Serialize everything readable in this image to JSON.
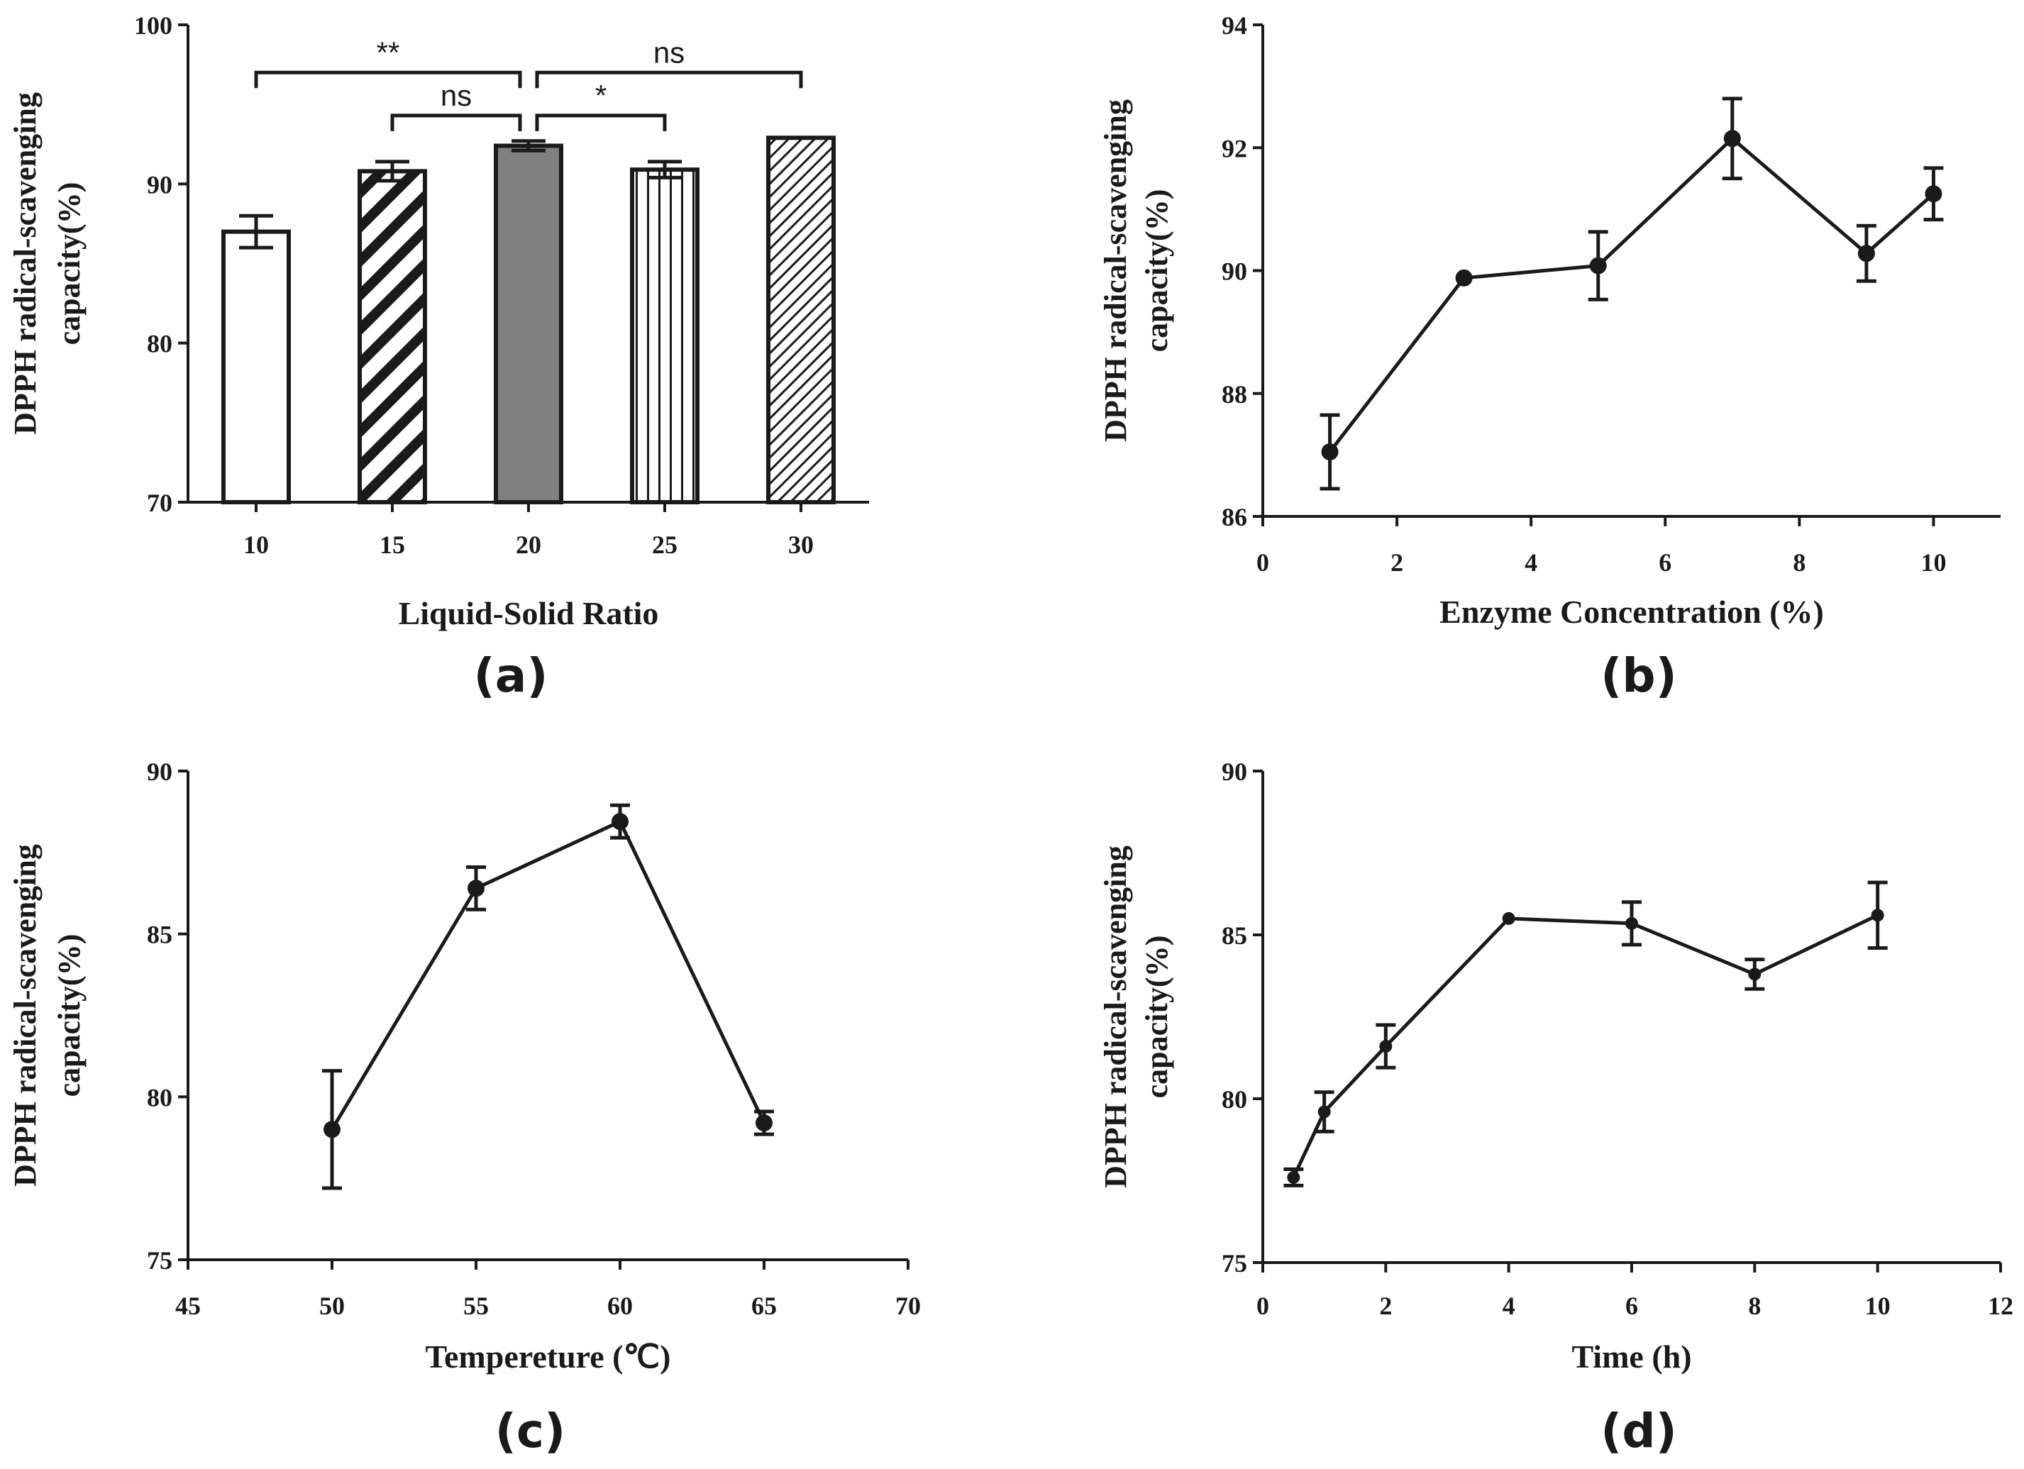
{
  "chart_data": [
    {
      "panel": "(a)",
      "type": "bar",
      "ylabel_line1": "DPPH radical-scavenging",
      "ylabel_line2": "capacity(%)",
      "xlabel": "Liquid-Solid Ratio",
      "categories": [
        "10",
        "15",
        "20",
        "25",
        "30"
      ],
      "values": [
        87.0,
        90.8,
        92.4,
        90.9,
        92.9
      ],
      "errors": [
        1.0,
        0.6,
        0.3,
        0.5,
        0.0
      ],
      "fills": [
        "white",
        "bold-hatch",
        "solid-gray",
        "vertical-lines",
        "fine-hatch"
      ],
      "bar_gray": "#808080",
      "ylim": [
        70,
        100
      ],
      "yticks": [
        70,
        80,
        90,
        100
      ],
      "significance": [
        {
          "from": "10",
          "to": "20",
          "label": "**",
          "level": 97
        },
        {
          "from": "15",
          "to": "20",
          "label": "ns",
          "level": 94.3
        },
        {
          "from": "20",
          "to": "25",
          "label": "*",
          "level": 94.3
        },
        {
          "from": "20",
          "to": "30",
          "label": "ns",
          "level": 97
        }
      ]
    },
    {
      "panel": "(b)",
      "type": "line",
      "ylabel_line1": "DPPH radical-scavenging",
      "ylabel_line2": "capacity(%)",
      "xlabel": "Enzyme Concentration (%)",
      "x": [
        1,
        3,
        5,
        7,
        9,
        10
      ],
      "y": [
        87.05,
        89.88,
        90.08,
        92.15,
        90.28,
        91.25
      ],
      "errors": [
        0.6,
        0.0,
        0.55,
        0.65,
        0.45,
        0.42
      ],
      "xlim": [
        0,
        11
      ],
      "ylim": [
        86,
        94
      ],
      "xticks": [
        0,
        2,
        4,
        6,
        8,
        10
      ],
      "yticks": [
        86,
        88,
        90,
        92,
        94
      ]
    },
    {
      "panel": "(c)",
      "type": "line",
      "ylabel_line1": "DPPH radical-scavenging",
      "ylabel_line2": "capacity(%)",
      "xlabel": "Tempereture (℃)",
      "x": [
        50,
        55,
        60,
        65
      ],
      "y": [
        79.0,
        86.4,
        88.45,
        79.2
      ],
      "errors": [
        1.8,
        0.65,
        0.5,
        0.35
      ],
      "xlim": [
        45,
        70
      ],
      "ylim": [
        75,
        90
      ],
      "xticks": [
        45,
        50,
        55,
        60,
        65,
        70
      ],
      "yticks": [
        75,
        80,
        85,
        90
      ]
    },
    {
      "panel": "(d)",
      "type": "line",
      "ylabel_line1": "DPPH radical-scavenging",
      "ylabel_line2": "capacity(%)",
      "xlabel": "Time (h)",
      "x": [
        0.5,
        1,
        2,
        4,
        6,
        8,
        10
      ],
      "y": [
        77.6,
        79.6,
        81.6,
        85.5,
        85.35,
        83.8,
        85.6
      ],
      "errors": [
        0.25,
        0.6,
        0.65,
        0.0,
        0.65,
        0.45,
        1.0
      ],
      "xlim": [
        0,
        12
      ],
      "ylim": [
        75,
        90
      ],
      "xticks": [
        0,
        2,
        4,
        6,
        8,
        10,
        12
      ],
      "yticks": [
        75,
        80,
        85,
        90
      ]
    }
  ]
}
